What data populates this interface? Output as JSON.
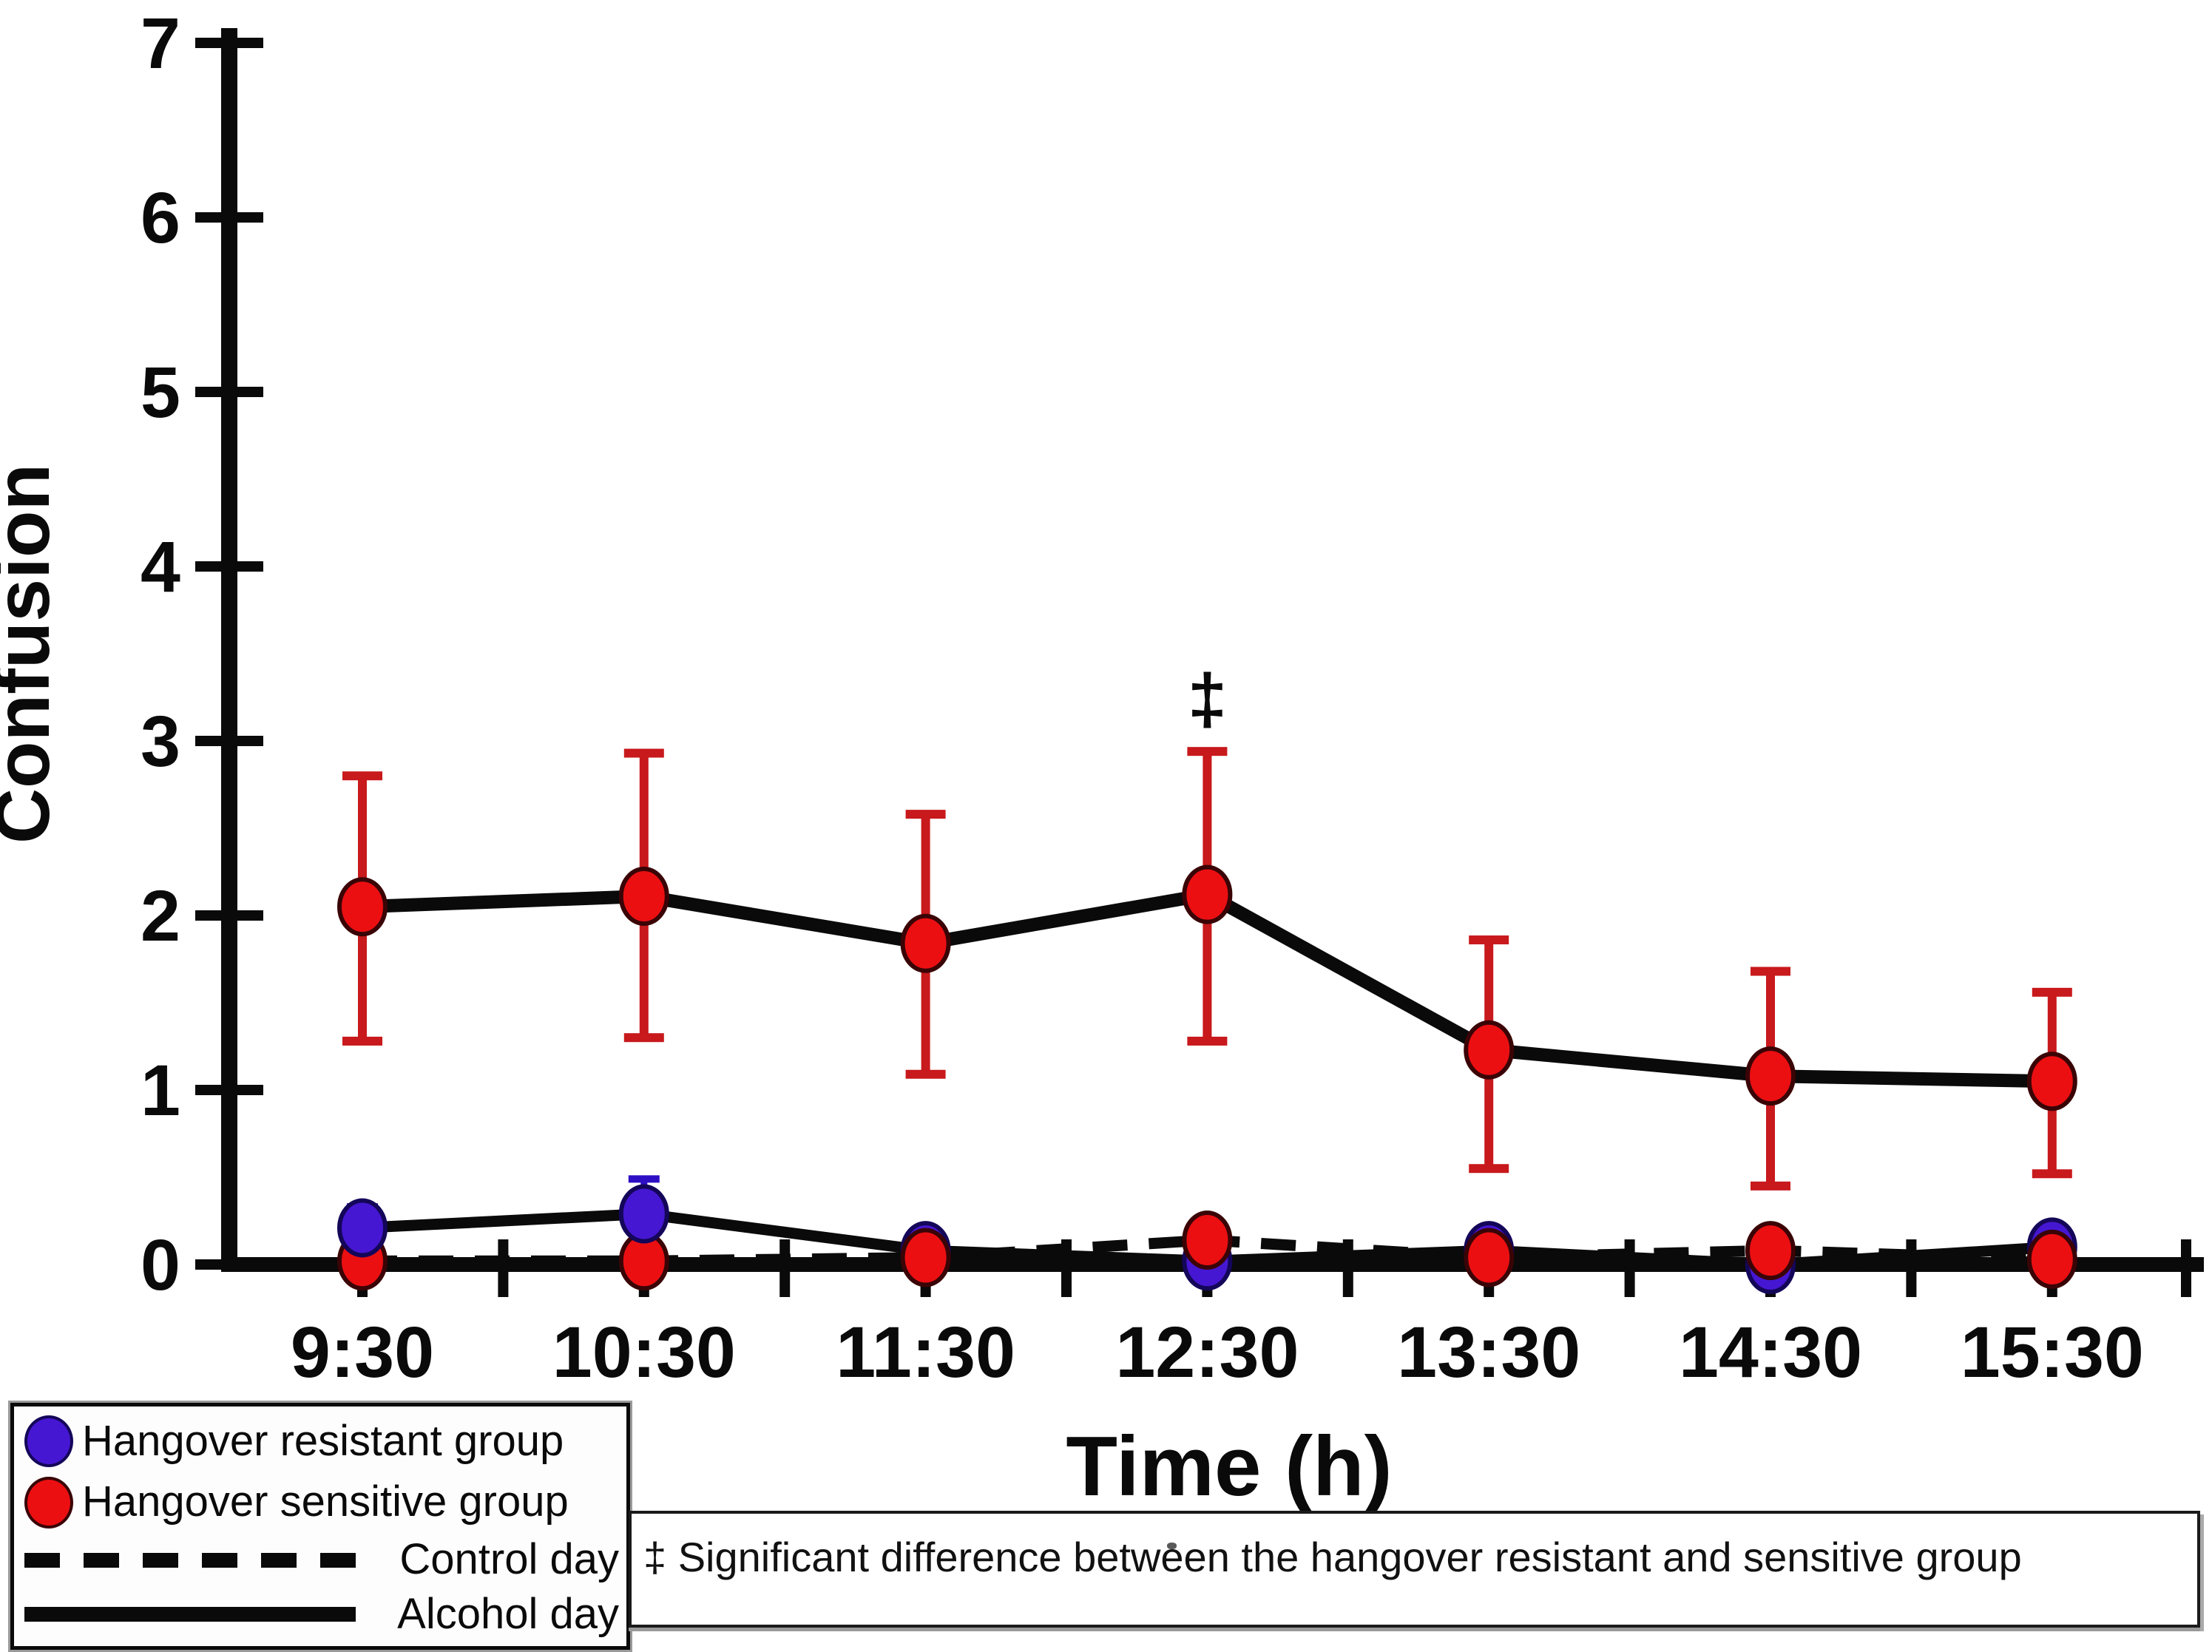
{
  "colors": {
    "background": "#ffffff",
    "axis": "#0a0a0a",
    "line": "#0a0a0a",
    "resistant_marker": "#4617d2",
    "resistant_marker_outline": "#140659",
    "resistant_error": "#2f0fc4",
    "sensitive_marker": "#ec0f12",
    "sensitive_marker_outline": "#3a0406",
    "sensitive_error": "#c8191c"
  },
  "chart_data": {
    "type": "line",
    "title": "",
    "xlabel": "Time (h)",
    "ylabel": "Confusion",
    "ylim": [
      0,
      7
    ],
    "yticks": [
      0,
      1,
      2,
      3,
      4,
      5,
      6,
      7
    ],
    "grid": false,
    "legend_position": "bottom-left-box",
    "categories": [
      "9:30",
      "10:30",
      "11:30",
      "12:30",
      "13:30",
      "14:30",
      "15:30"
    ],
    "series": [
      {
        "name": "Hangover sensitive group - Alcohol day",
        "group": "sensitive",
        "day": "alcohol",
        "line": "solid",
        "marker": "red",
        "values": [
          2.05,
          2.11,
          1.84,
          2.12,
          1.23,
          1.08,
          1.05
        ],
        "err_low": [
          1.28,
          1.3,
          1.09,
          1.28,
          0.55,
          0.45,
          0.52
        ],
        "err_high": [
          2.8,
          2.93,
          2.58,
          2.94,
          1.86,
          1.68,
          1.56
        ]
      },
      {
        "name": "Hangover resistant group - Alcohol day",
        "group": "resistant",
        "day": "alcohol",
        "line": "solid",
        "marker": "blue",
        "values": [
          0.21,
          0.29,
          0.08,
          0.02,
          0.08,
          0.0,
          0.1
        ],
        "err_high": [
          0.33,
          0.49,
          null,
          null,
          null,
          null,
          null
        ]
      },
      {
        "name": "Hangover sensitive group - Control day",
        "group": "sensitive",
        "day": "control",
        "line": "dashed",
        "marker": "red",
        "values": [
          0.02,
          0.02,
          0.04,
          0.14,
          0.04,
          0.08,
          0.03
        ]
      },
      {
        "name": "Hangover resistant group - Control day",
        "group": "resistant",
        "day": "control",
        "line": "dashed",
        "marker": "none",
        "values": [
          0.02,
          0.02,
          0.02,
          0.0,
          0.02,
          0.0,
          0.02
        ]
      }
    ],
    "annotation": {
      "symbol": "‡",
      "category": "12:30",
      "category_index": 3,
      "y": 3.25
    }
  },
  "legend": {
    "items": [
      {
        "label": "Hangover resistant group",
        "swatch": "blue-ellipse"
      },
      {
        "label": "Hangover sensitive group",
        "swatch": "red-ellipse"
      },
      {
        "label": "Control day",
        "swatch": "dashed-line"
      },
      {
        "label": "Alcohol day",
        "swatch": "solid-line"
      }
    ]
  },
  "note": {
    "text": "‡ Significant difference between the hangover resistant and sensitive group"
  }
}
